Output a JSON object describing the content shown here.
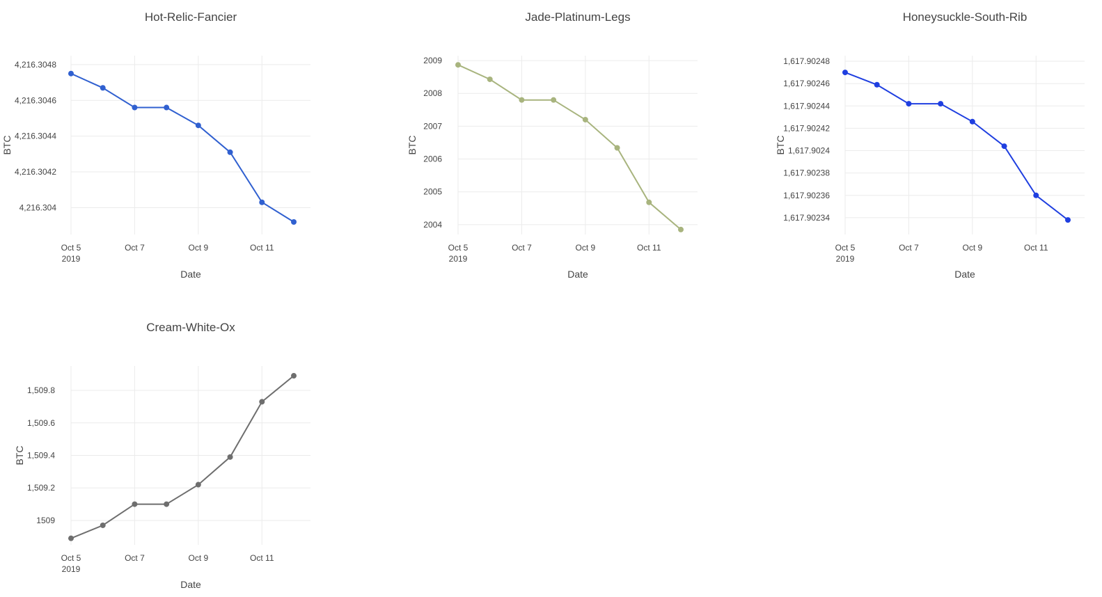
{
  "chart_data": [
    {
      "type": "line",
      "title": "Hot-Relic-Fancier",
      "xlabel": "Date",
      "ylabel": "BTC",
      "x": [
        "2019-10-05",
        "2019-10-06",
        "2019-10-07",
        "2019-10-08",
        "2019-10-09",
        "2019-10-10",
        "2019-10-11",
        "2019-10-12"
      ],
      "x_ticks": [
        {
          "date": "2019-10-05",
          "label": "Oct 5",
          "sublabel": "2019"
        },
        {
          "date": "2019-10-07",
          "label": "Oct 7"
        },
        {
          "date": "2019-10-09",
          "label": "Oct 9"
        },
        {
          "date": "2019-10-11",
          "label": "Oct 11"
        }
      ],
      "y_ticks": [
        {
          "value": 4216.304,
          "label": "4,216.304"
        },
        {
          "value": 4216.3042,
          "label": "4,216.3042"
        },
        {
          "value": 4216.3044,
          "label": "4,216.3044"
        },
        {
          "value": 4216.3046,
          "label": "4,216.3046"
        },
        {
          "value": 4216.3048,
          "label": "4,216.3048"
        }
      ],
      "ylim": [
        4216.30385,
        4216.30485
      ],
      "grid": true,
      "color": "#3060d0",
      "series": [
        {
          "values": [
            4216.30475,
            4216.30467,
            4216.30456,
            4216.30456,
            4216.30446,
            4216.30431,
            4216.30403,
            4216.30392
          ]
        }
      ]
    },
    {
      "type": "line",
      "title": "Jade-Platinum-Legs",
      "xlabel": "Date",
      "ylabel": "BTC",
      "x": [
        "2019-10-05",
        "2019-10-06",
        "2019-10-07",
        "2019-10-08",
        "2019-10-09",
        "2019-10-10",
        "2019-10-11",
        "2019-10-12"
      ],
      "x_ticks": [
        {
          "date": "2019-10-05",
          "label": "Oct 5",
          "sublabel": "2019"
        },
        {
          "date": "2019-10-07",
          "label": "Oct 7"
        },
        {
          "date": "2019-10-09",
          "label": "Oct 9"
        },
        {
          "date": "2019-10-11",
          "label": "Oct 11"
        }
      ],
      "y_ticks": [
        {
          "value": 2004,
          "label": "2004"
        },
        {
          "value": 2005,
          "label": "2005"
        },
        {
          "value": 2006,
          "label": "2006"
        },
        {
          "value": 2007,
          "label": "2007"
        },
        {
          "value": 2008,
          "label": "2008"
        },
        {
          "value": 2009,
          "label": "2009"
        }
      ],
      "ylim": [
        2003.7,
        2009.15
      ],
      "grid": true,
      "color": "#a8b47e",
      "series": [
        {
          "values": [
            2008.87,
            2008.43,
            2007.8,
            2007.8,
            2007.2,
            2006.34,
            2004.68,
            2003.85
          ]
        }
      ]
    },
    {
      "type": "line",
      "title": "Honeysuckle-South-Rib",
      "xlabel": "Date",
      "ylabel": "BTC",
      "x": [
        "2019-10-05",
        "2019-10-06",
        "2019-10-07",
        "2019-10-08",
        "2019-10-09",
        "2019-10-10",
        "2019-10-11",
        "2019-10-12"
      ],
      "x_ticks": [
        {
          "date": "2019-10-05",
          "label": "Oct 5",
          "sublabel": "2019"
        },
        {
          "date": "2019-10-07",
          "label": "Oct 7"
        },
        {
          "date": "2019-10-09",
          "label": "Oct 9"
        },
        {
          "date": "2019-10-11",
          "label": "Oct 11"
        }
      ],
      "y_ticks": [
        {
          "value": 1617.90234,
          "label": "1,617.90234"
        },
        {
          "value": 1617.90236,
          "label": "1,617.90236"
        },
        {
          "value": 1617.90238,
          "label": "1,617.90238"
        },
        {
          "value": 1617.9024,
          "label": "1,617.9024"
        },
        {
          "value": 1617.90242,
          "label": "1,617.90242"
        },
        {
          "value": 1617.90244,
          "label": "1,617.90244"
        },
        {
          "value": 1617.90246,
          "label": "1,617.90246"
        },
        {
          "value": 1617.90248,
          "label": "1,617.90248"
        }
      ],
      "ylim": [
        1617.902325,
        1617.902485
      ],
      "grid": true,
      "color": "#1f3fe0",
      "series": [
        {
          "values": [
            1617.90247,
            1617.902459,
            1617.902442,
            1617.902442,
            1617.902426,
            1617.902404,
            1617.90236,
            1617.902338
          ]
        }
      ]
    },
    {
      "type": "line",
      "title": "Cream-White-Ox",
      "xlabel": "Date",
      "ylabel": "BTC",
      "x": [
        "2019-10-05",
        "2019-10-06",
        "2019-10-07",
        "2019-10-08",
        "2019-10-09",
        "2019-10-10",
        "2019-10-11",
        "2019-10-12"
      ],
      "x_ticks": [
        {
          "date": "2019-10-05",
          "label": "Oct 5",
          "sublabel": "2019"
        },
        {
          "date": "2019-10-07",
          "label": "Oct 7"
        },
        {
          "date": "2019-10-09",
          "label": "Oct 9"
        },
        {
          "date": "2019-10-11",
          "label": "Oct 11"
        }
      ],
      "y_ticks": [
        {
          "value": 1509,
          "label": "1509"
        },
        {
          "value": 1509.2,
          "label": "1,509.2"
        },
        {
          "value": 1509.4,
          "label": "1,509.4"
        },
        {
          "value": 1509.6,
          "label": "1,509.6"
        },
        {
          "value": 1509.8,
          "label": "1,509.8"
        }
      ],
      "ylim": [
        1508.85,
        1509.95
      ],
      "grid": true,
      "color": "#6e6e6e",
      "series": [
        {
          "values": [
            1508.89,
            1508.97,
            1509.1,
            1509.1,
            1509.22,
            1509.39,
            1509.73,
            1509.89
          ]
        }
      ]
    }
  ]
}
